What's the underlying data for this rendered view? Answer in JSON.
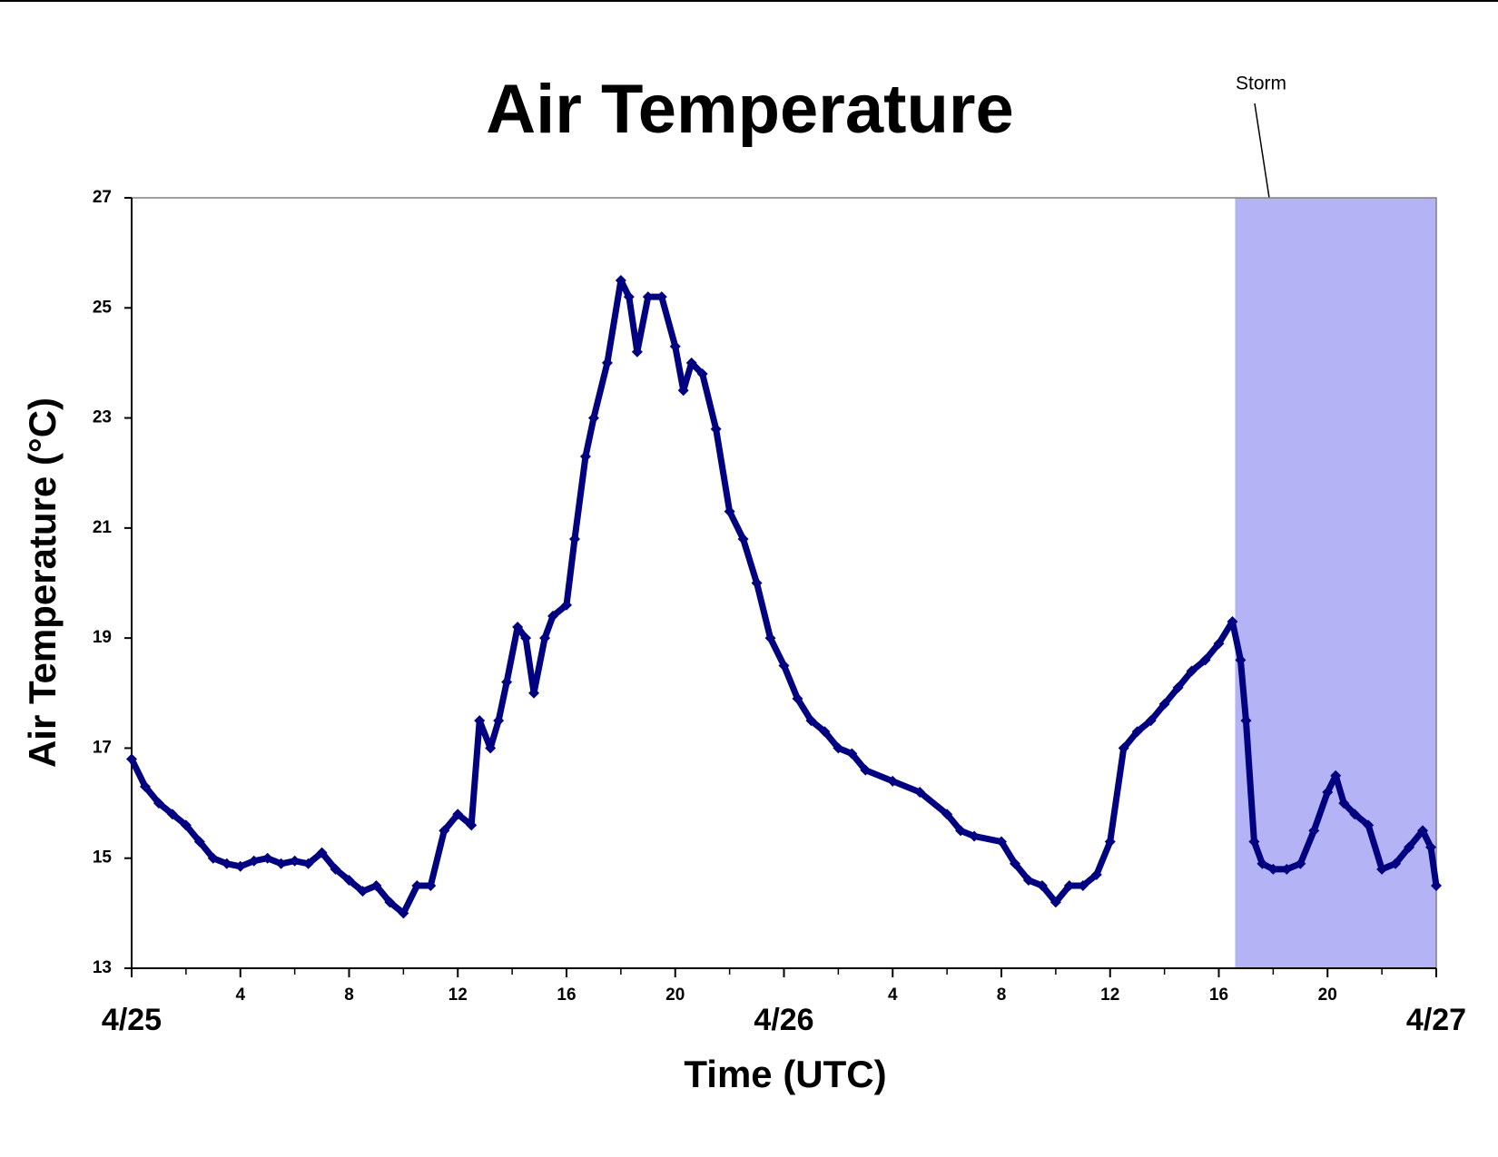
{
  "chart_data": {
    "type": "scatter",
    "title": "Air Temperature",
    "x_label": "Time (UTC)",
    "y_label": "Air Temperature (°C)",
    "annotation": "Storm",
    "shaded_region": [
      40.6,
      48
    ],
    "shade_color": "#b3b3f5",
    "marker_color": "#000080",
    "xlim": [
      0,
      48
    ],
    "ylim": [
      13,
      27
    ],
    "yticks": [
      13,
      15,
      17,
      19,
      21,
      23,
      25,
      27
    ],
    "xticks": [
      {
        "value": 0,
        "label": "4/25"
      },
      4,
      8,
      12,
      16,
      20,
      {
        "value": 24,
        "label": "4/26"
      },
      {
        "value": 28,
        "label": "4"
      },
      {
        "value": 32,
        "label": "8"
      },
      {
        "value": 36,
        "label": "12"
      },
      {
        "value": 40,
        "label": "16"
      },
      {
        "value": 44,
        "label": "20"
      },
      {
        "value": 48,
        "label": "4/27"
      }
    ],
    "xticks_minor": [
      2,
      6,
      10,
      14,
      18,
      22,
      26,
      30,
      34,
      38,
      42,
      46
    ],
    "series": [
      {
        "name": "Air Temperature",
        "x": [
          0,
          0.5,
          1,
          1.5,
          2,
          2.5,
          3,
          3.5,
          4,
          4.5,
          5,
          5.5,
          6,
          6.5,
          7,
          7.5,
          8,
          8.5,
          9,
          9.5,
          10,
          10.5,
          11,
          11.5,
          12,
          12.5,
          12.8,
          13.2,
          13.5,
          13.8,
          14.2,
          14.5,
          14.8,
          15.2,
          15.5,
          16,
          16.3,
          16.7,
          17,
          17.5,
          18,
          18.3,
          18.6,
          19,
          19.5,
          20,
          20.3,
          20.6,
          21,
          21.5,
          22,
          22.5,
          23,
          23.5,
          24,
          24.5,
          25,
          25.5,
          26,
          26.5,
          27,
          28,
          29,
          30,
          30.5,
          31,
          32,
          32.5,
          33,
          33.5,
          34,
          34.5,
          35,
          35.5,
          36,
          36.5,
          37,
          37.5,
          38,
          38.5,
          39,
          39.5,
          40,
          40.5,
          40.8,
          41,
          41.3,
          41.6,
          42,
          42.5,
          43,
          43.5,
          44,
          44.3,
          44.6,
          45,
          45.5,
          46,
          46.5,
          47,
          47.5,
          47.8,
          48
        ],
        "values": [
          16.8,
          16.3,
          16.0,
          15.8,
          15.6,
          15.3,
          15.0,
          14.9,
          14.85,
          14.95,
          15.0,
          14.9,
          14.95,
          14.9,
          15.1,
          14.8,
          14.6,
          14.4,
          14.5,
          14.2,
          14.0,
          14.5,
          14.5,
          15.5,
          15.8,
          15.6,
          17.5,
          17.0,
          17.5,
          18.2,
          19.2,
          19.0,
          18.0,
          19.0,
          19.4,
          19.6,
          20.8,
          22.3,
          23.0,
          24.0,
          25.5,
          25.2,
          24.2,
          25.2,
          25.2,
          24.3,
          23.5,
          24.0,
          23.8,
          22.8,
          21.3,
          20.8,
          20.0,
          19.0,
          18.5,
          17.9,
          17.5,
          17.3,
          17.0,
          16.9,
          16.6,
          16.4,
          16.2,
          15.8,
          15.5,
          15.4,
          15.3,
          14.9,
          14.6,
          14.5,
          14.2,
          14.5,
          14.5,
          14.7,
          15.3,
          17.0,
          17.3,
          17.5,
          17.8,
          18.1,
          18.4,
          18.6,
          18.9,
          19.3,
          18.6,
          17.5,
          15.3,
          14.9,
          14.8,
          14.8,
          14.9,
          15.5,
          16.2,
          16.5,
          16.0,
          15.8,
          15.6,
          14.8,
          14.9,
          15.2,
          15.5,
          15.2,
          14.5
        ]
      }
    ]
  }
}
